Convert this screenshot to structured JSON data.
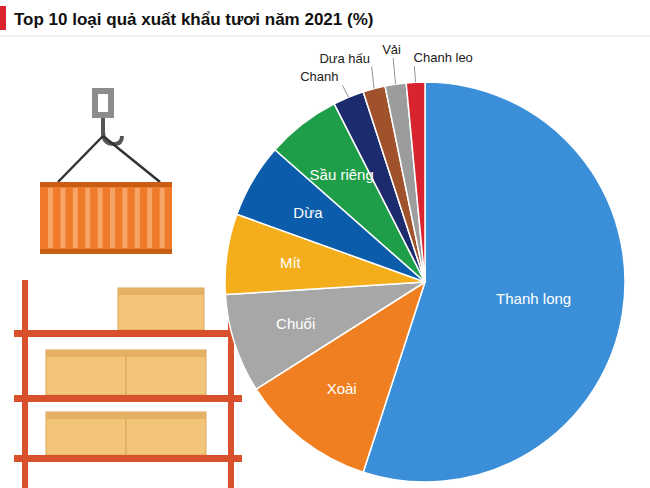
{
  "chart_data": {
    "type": "pie",
    "title": "Top 10 loại quả xuất khẩu tươi năm 2021 (%)",
    "categories": [
      "Thanh long",
      "Xoài",
      "Chuối",
      "Mít",
      "Dừa",
      "Sầu riêng",
      "Chanh",
      "Dưa hấu",
      "Vải",
      "Chanh leo"
    ],
    "values": [
      55,
      11,
      8,
      6.5,
      6,
      6,
      2.5,
      1.8,
      1.7,
      1.5
    ],
    "colors": [
      "#3b8fd8",
      "#f07f22",
      "#a7a7a7",
      "#f5ae1b",
      "#0b5dab",
      "#1f9e49",
      "#1b2b6d",
      "#a0522d",
      "#9c9c9c",
      "#d9232e"
    ]
  }
}
